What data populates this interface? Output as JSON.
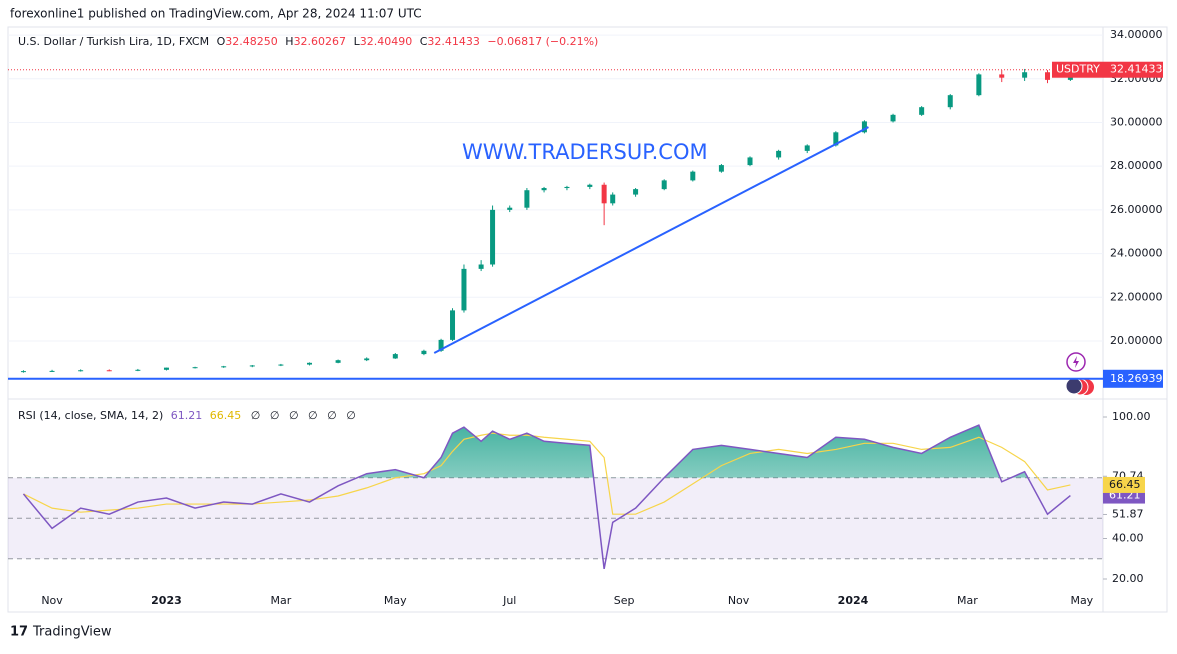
{
  "header": {
    "publisher": "forexonline1 published on TradingView.com, Apr 28, 2024 11:07 UTC",
    "footer": "TradingView"
  },
  "chart_data": [
    {
      "type": "candlestick",
      "title": "U.S. Dollar / Turkish Lira, 1D, FXCM",
      "ohlc_legend": [
        {
          "label": "O",
          "value": "32.48250"
        },
        {
          "label": "H",
          "value": "32.60267"
        },
        {
          "label": "L",
          "value": "32.40490"
        }
      ],
      "close_label": "C",
      "change": "−0.06817 (−0.21%)",
      "symbol": "USDTRY",
      "watermark": "WWW.TRADERSUP.COM",
      "up_color": "#089981",
      "down_color": "#f23645",
      "x": [
        -0.5,
        0,
        0.5,
        1,
        1.5,
        2,
        2.5,
        3,
        3.5,
        4,
        4.5,
        5,
        5.5,
        6,
        6.5,
        6.8,
        7.0,
        7.2,
        7.5,
        7.7,
        8.0,
        8.3,
        8.6,
        9.0,
        9.4,
        9.65,
        9.8,
        10.2,
        10.7,
        11.2,
        11.7,
        12.2,
        12.7,
        13.2,
        13.7,
        14.2,
        14.7,
        15.2,
        15.7,
        16.2,
        16.6,
        17.0,
        17.4,
        17.8
      ],
      "open": [
        18.6,
        18.62,
        18.63,
        18.66,
        18.65,
        18.68,
        18.78,
        18.8,
        18.84,
        18.88,
        18.92,
        19.0,
        19.12,
        19.2,
        19.4,
        19.55,
        20.05,
        21.4,
        23.3,
        23.5,
        26.0,
        26.1,
        26.9,
        27.0,
        27.05,
        27.15,
        26.3,
        26.7,
        26.95,
        27.35,
        27.75,
        28.05,
        28.4,
        28.7,
        28.95,
        29.55,
        30.05,
        30.35,
        30.7,
        31.25,
        32.2,
        32.05,
        32.3,
        31.95
      ],
      "high": [
        18.66,
        18.68,
        18.7,
        18.7,
        18.72,
        18.78,
        18.82,
        18.86,
        18.9,
        18.95,
        19.02,
        19.15,
        19.25,
        19.45,
        19.6,
        20.1,
        21.5,
        23.5,
        23.7,
        26.2,
        26.2,
        27.0,
        27.05,
        27.1,
        27.2,
        27.25,
        26.8,
        27.0,
        27.4,
        27.8,
        28.1,
        28.45,
        28.75,
        29.0,
        29.6,
        30.1,
        30.4,
        30.75,
        31.3,
        32.25,
        32.4,
        32.45,
        32.4,
        32.45
      ],
      "low": [
        18.55,
        18.58,
        18.6,
        18.62,
        18.62,
        18.65,
        18.74,
        18.77,
        18.8,
        18.85,
        18.88,
        18.98,
        19.08,
        19.18,
        19.35,
        19.5,
        20.0,
        21.3,
        23.2,
        23.4,
        25.9,
        26.0,
        26.8,
        26.9,
        26.95,
        25.3,
        26.2,
        26.6,
        26.9,
        27.3,
        27.7,
        28.0,
        28.3,
        28.6,
        28.9,
        29.5,
        30.0,
        30.3,
        30.6,
        31.2,
        31.85,
        31.9,
        31.8,
        31.9
      ],
      "close": [
        18.62,
        18.63,
        18.66,
        18.65,
        18.68,
        18.78,
        18.8,
        18.84,
        18.88,
        18.92,
        19.0,
        19.12,
        19.2,
        19.4,
        19.55,
        20.05,
        21.4,
        23.3,
        23.5,
        26.0,
        26.1,
        26.9,
        27.0,
        27.05,
        27.15,
        26.3,
        26.7,
        26.95,
        27.35,
        27.75,
        28.05,
        28.4,
        28.7,
        28.95,
        29.55,
        30.05,
        30.35,
        30.7,
        31.25,
        32.2,
        32.05,
        32.3,
        31.95,
        32.41433
      ],
      "hline": {
        "value": 18.26939,
        "color": "#2962ff"
      },
      "trendline": {
        "x": [
          6.68,
          14.27
        ],
        "y": [
          19.45,
          29.79
        ],
        "color": "#2962ff"
      },
      "xlim": [
        -0.77,
        18.37
      ],
      "xticks": [
        {
          "value": 0,
          "label": "Nov"
        },
        {
          "value": 2,
          "label": "2023"
        },
        {
          "value": 4,
          "label": "Mar"
        },
        {
          "value": 6,
          "label": "May"
        },
        {
          "value": 8,
          "label": "Jul"
        },
        {
          "value": 10,
          "label": "Sep"
        },
        {
          "value": 12,
          "label": "Nov"
        },
        {
          "value": 14,
          "label": "2024"
        },
        {
          "value": 16,
          "label": "Mar"
        },
        {
          "value": 18,
          "label": "May"
        }
      ],
      "ylim": [
        17.39,
        34.37
      ],
      "yticks": [
        {
          "value": 20,
          "label": "20.00000"
        },
        {
          "value": 22,
          "label": "22.00000"
        },
        {
          "value": 24,
          "label": "24.00000"
        },
        {
          "value": 26,
          "label": "26.00000"
        },
        {
          "value": 28,
          "label": "28.00000"
        },
        {
          "value": 30,
          "label": "30.00000"
        },
        {
          "value": 32,
          "label": "32.00000"
        },
        {
          "value": 34,
          "label": "34.00000"
        }
      ]
    },
    {
      "type": "line",
      "title": "RSI (14, close, SMA, 14, 2)",
      "x": [
        -0.5,
        0,
        0.5,
        1,
        1.5,
        2,
        2.5,
        3,
        3.5,
        4,
        4.5,
        5,
        5.5,
        6,
        6.5,
        6.8,
        7.0,
        7.2,
        7.5,
        7.7,
        8.0,
        8.3,
        8.6,
        9.0,
        9.4,
        9.65,
        9.8,
        10.2,
        10.7,
        11.2,
        11.7,
        12.2,
        12.7,
        13.2,
        13.7,
        14.2,
        14.7,
        15.2,
        15.7,
        16.2,
        16.6,
        17.0,
        17.4,
        17.8
      ],
      "series": [
        {
          "color": "#7e57c2",
          "values": [
            62,
            45,
            55,
            52,
            58,
            60,
            55,
            58,
            57,
            62,
            58,
            66,
            72,
            74,
            70,
            80,
            92,
            95,
            88,
            93,
            89,
            92,
            88,
            87,
            86,
            25,
            48,
            55,
            70,
            84,
            86,
            84,
            82,
            80,
            90,
            89,
            85,
            82,
            90,
            96,
            68,
            73,
            52,
            61.21
          ]
        },
        {
          "color": "#f7d54a",
          "values": [
            62,
            55,
            53,
            54,
            55,
            57,
            57,
            57,
            57,
            58,
            59,
            61,
            65,
            70,
            72,
            76,
            83,
            89,
            91,
            92,
            91,
            91,
            90,
            89,
            88,
            80,
            52,
            52,
            58,
            67,
            76,
            82,
            84,
            82,
            84,
            87,
            87,
            84,
            85,
            90,
            85,
            78,
            64,
            66.45
          ]
        }
      ],
      "legend_extras": [
        "∅",
        "∅",
        "∅",
        "∅",
        "∅",
        "∅"
      ],
      "band_levels": [
        70,
        50,
        30
      ],
      "ylim": [
        14.57,
        108.4
      ],
      "yticks": [
        {
          "value": 100,
          "label": "100.00"
        },
        {
          "value": 70.74,
          "label": "70.74"
        },
        {
          "value": 51.87,
          "label": "51.87"
        },
        {
          "value": 40,
          "label": "40.00"
        },
        {
          "value": 20,
          "label": "20.00"
        }
      ]
    }
  ]
}
